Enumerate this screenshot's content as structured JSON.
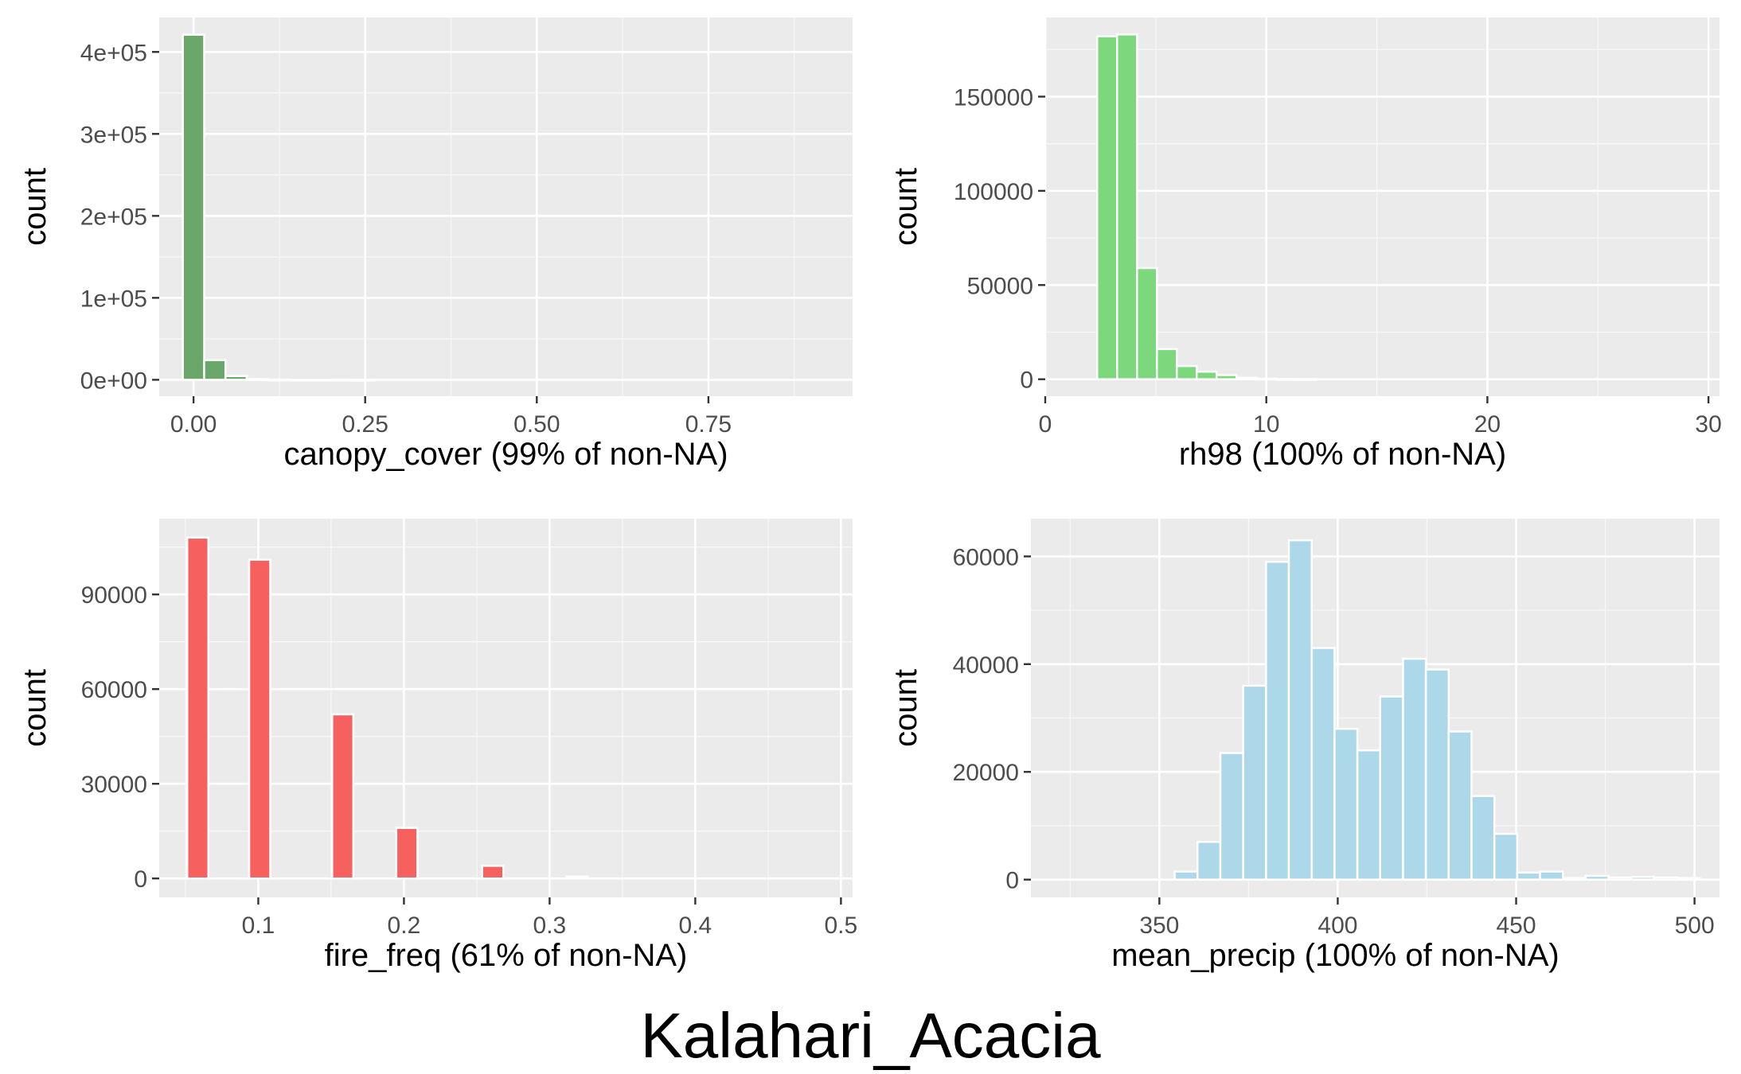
{
  "figure_title": "Kalahari_Acacia",
  "chart_data": [
    {
      "type": "bar",
      "subtype": "histogram",
      "xlabel": "canopy_cover (99% of non-NA)",
      "ylabel": "count",
      "fill": "#6BA76B",
      "xlim": [
        -0.05,
        0.96
      ],
      "ylim": [
        -20000,
        442000
      ],
      "x_ticks": [
        0,
        0.25,
        0.5,
        0.75
      ],
      "x_tick_labels": [
        "0.00",
        "0.25",
        "0.50",
        "0.75"
      ],
      "y_ticks": [
        0,
        100000,
        200000,
        300000,
        400000
      ],
      "y_tick_labels": [
        "0e+00",
        "1e+05",
        "2e+05",
        "3e+05",
        "4e+05"
      ],
      "bin_width": 0.031,
      "bins": [
        {
          "x": 0.0,
          "count": 421000
        },
        {
          "x": 0.031,
          "count": 24000
        },
        {
          "x": 0.062,
          "count": 4500
        },
        {
          "x": 0.093,
          "count": 900
        },
        {
          "x": 0.124,
          "count": 300
        },
        {
          "x": 0.155,
          "count": 150
        },
        {
          "x": 0.186,
          "count": 80
        },
        {
          "x": 0.217,
          "count": 40
        },
        {
          "x": 0.248,
          "count": 20
        }
      ]
    },
    {
      "type": "bar",
      "subtype": "histogram",
      "xlabel": "rh98 (100% of non-NA)",
      "ylabel": "count",
      "fill": "#7DD87D",
      "xlim": [
        0,
        30.5
      ],
      "ylim": [
        -9000,
        192000
      ],
      "x_ticks": [
        0,
        10,
        20,
        30
      ],
      "x_tick_labels": [
        "0",
        "10",
        "20",
        "30"
      ],
      "y_ticks": [
        0,
        50000,
        100000,
        150000
      ],
      "y_tick_labels": [
        "0",
        "50000",
        "100000",
        "150000"
      ],
      "bin_width": 0.9,
      "bins": [
        {
          "x": 2.8,
          "count": 182000
        },
        {
          "x": 3.7,
          "count": 183000
        },
        {
          "x": 4.6,
          "count": 59000
        },
        {
          "x": 5.5,
          "count": 16000
        },
        {
          "x": 6.4,
          "count": 7000
        },
        {
          "x": 7.3,
          "count": 4000
        },
        {
          "x": 8.2,
          "count": 2200
        },
        {
          "x": 9.1,
          "count": 800
        },
        {
          "x": 10.0,
          "count": 300
        },
        {
          "x": 10.9,
          "count": 120
        },
        {
          "x": 11.8,
          "count": 60
        }
      ]
    },
    {
      "type": "bar",
      "subtype": "histogram",
      "xlabel": "fire_freq (61% of non-NA)",
      "ylabel": "count",
      "fill": "#F66160",
      "xlim": [
        0.032,
        0.508
      ],
      "ylim": [
        -6000,
        114000
      ],
      "x_ticks": [
        0.1,
        0.2,
        0.3,
        0.4,
        0.5
      ],
      "x_tick_labels": [
        "0.1",
        "0.2",
        "0.3",
        "0.4",
        "0.5"
      ],
      "y_ticks": [
        0,
        30000,
        60000,
        90000
      ],
      "y_tick_labels": [
        "0",
        "30000",
        "60000",
        "90000"
      ],
      "bin_width": 0.0145,
      "bins": [
        {
          "x": 0.0585,
          "count": 108000
        },
        {
          "x": 0.101,
          "count": 101000
        },
        {
          "x": 0.158,
          "count": 52000
        },
        {
          "x": 0.202,
          "count": 16000
        },
        {
          "x": 0.261,
          "count": 4000
        },
        {
          "x": 0.319,
          "count": 600
        }
      ]
    },
    {
      "type": "bar",
      "subtype": "histogram",
      "xlabel": "mean_precip (100% of non-NA)",
      "ylabel": "count",
      "fill": "#ADD8EA",
      "xlim": [
        314,
        507
      ],
      "ylim": [
        -3300,
        67000
      ],
      "x_ticks": [
        350,
        400,
        450,
        500
      ],
      "x_tick_labels": [
        "350",
        "400",
        "450",
        "500"
      ],
      "y_ticks": [
        0,
        20000,
        40000,
        60000
      ],
      "y_tick_labels": [
        "0",
        "20000",
        "40000",
        "60000"
      ],
      "bin_width": 6.4,
      "bins": [
        {
          "x": 357.5,
          "count": 1500
        },
        {
          "x": 363.9,
          "count": 7000
        },
        {
          "x": 370.3,
          "count": 23500
        },
        {
          "x": 376.7,
          "count": 36000
        },
        {
          "x": 383.1,
          "count": 59000
        },
        {
          "x": 389.5,
          "count": 63000
        },
        {
          "x": 395.9,
          "count": 43000
        },
        {
          "x": 402.3,
          "count": 28000
        },
        {
          "x": 408.7,
          "count": 24000
        },
        {
          "x": 415.1,
          "count": 34000
        },
        {
          "x": 421.5,
          "count": 41000
        },
        {
          "x": 427.9,
          "count": 39000
        },
        {
          "x": 434.3,
          "count": 27500
        },
        {
          "x": 440.7,
          "count": 15500
        },
        {
          "x": 447.1,
          "count": 8500
        },
        {
          "x": 453.5,
          "count": 1300
        },
        {
          "x": 459.9,
          "count": 1500
        },
        {
          "x": 466.3,
          "count": 300
        },
        {
          "x": 472.7,
          "count": 700
        },
        {
          "x": 479.1,
          "count": 400
        },
        {
          "x": 485.5,
          "count": 500
        },
        {
          "x": 491.9,
          "count": 400
        },
        {
          "x": 498.3,
          "count": 300
        }
      ]
    }
  ]
}
